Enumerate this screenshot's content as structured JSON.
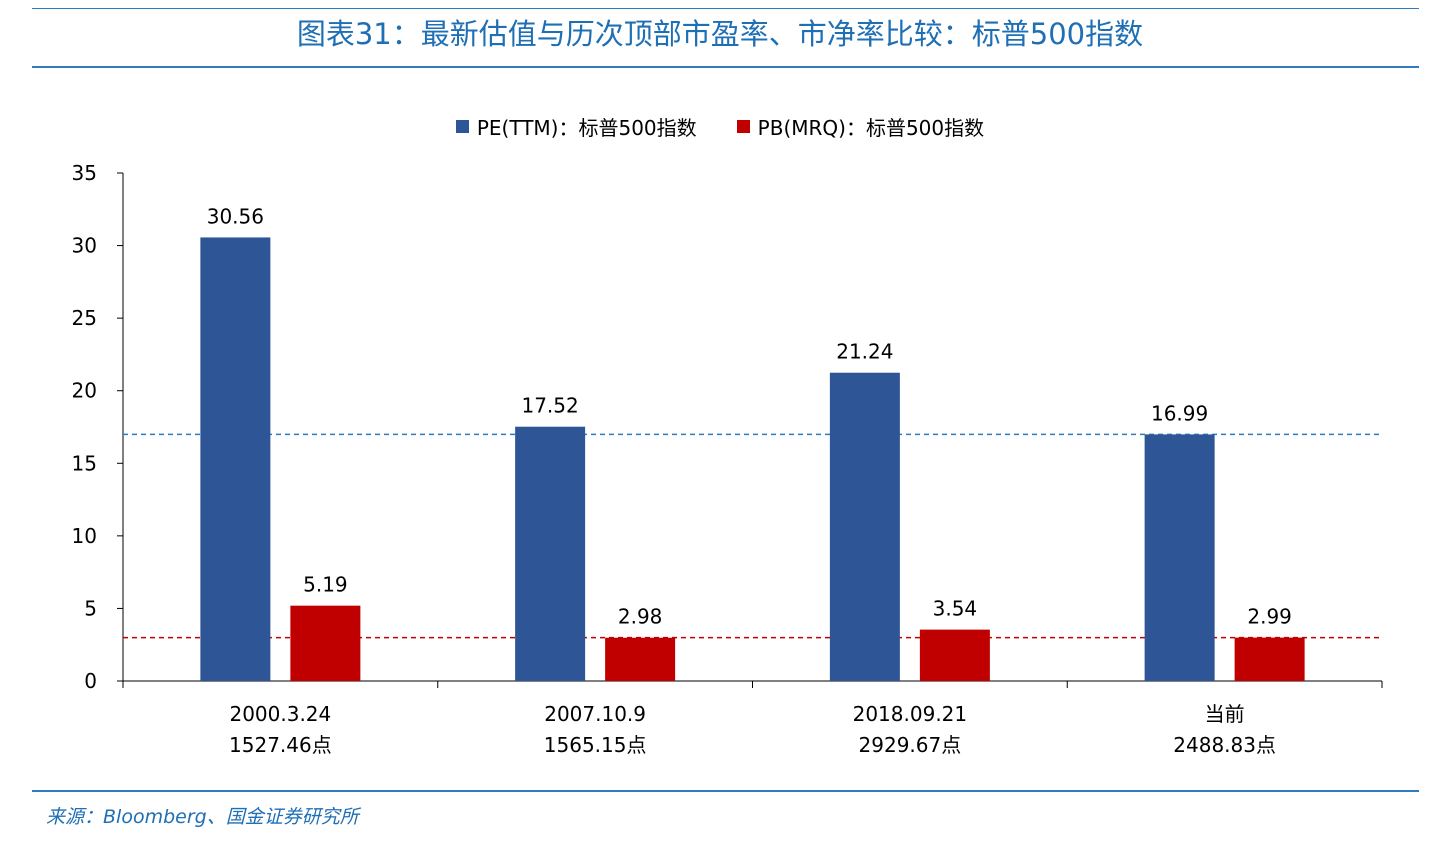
{
  "title": "图表31：最新估值与历次顶部市盈率、市净率比较：标普500指数",
  "source": "来源：Bloomberg、国金证券研究所",
  "colors": {
    "pe": "#2e5595",
    "pb": "#c00000",
    "accent": "#1f6fb5",
    "pe_ref_line": "#2e7bbf",
    "pb_ref_line": "#c00000"
  },
  "chart_data": {
    "type": "bar",
    "title": "图表31：最新估值与历次顶部市盈率、市净率比较：标普500指数",
    "categories": [
      {
        "line1": "2000.3.24",
        "line2": "1527.46点"
      },
      {
        "line1": "2007.10.9",
        "line2": "1565.15点"
      },
      {
        "line1": "2018.09.21",
        "line2": "2929.67点"
      },
      {
        "line1": "当前",
        "line2": "2488.83点"
      }
    ],
    "series": [
      {
        "name": "PE(TTM)：标普500指数",
        "values": [
          30.56,
          17.52,
          21.24,
          16.99
        ],
        "labels": [
          "30.56",
          "17.52",
          "21.24",
          "16.99"
        ]
      },
      {
        "name": "PB(MRQ)：标普500指数",
        "values": [
          5.19,
          2.98,
          3.54,
          2.99
        ],
        "labels": [
          "5.19",
          "2.98",
          "3.54",
          "2.99"
        ]
      }
    ],
    "reference_lines": [
      {
        "series": "PE(TTM)：标普500指数",
        "value": 16.99,
        "style": "dashed"
      },
      {
        "series": "PB(MRQ)：标普500指数",
        "value": 2.99,
        "style": "dashed"
      }
    ],
    "yticks": [
      "0",
      "5",
      "10",
      "15",
      "20",
      "25",
      "30",
      "35"
    ],
    "ylim": [
      0,
      35
    ],
    "xlabel": "",
    "ylabel": "",
    "legend_position": "top-center",
    "grid": false
  }
}
